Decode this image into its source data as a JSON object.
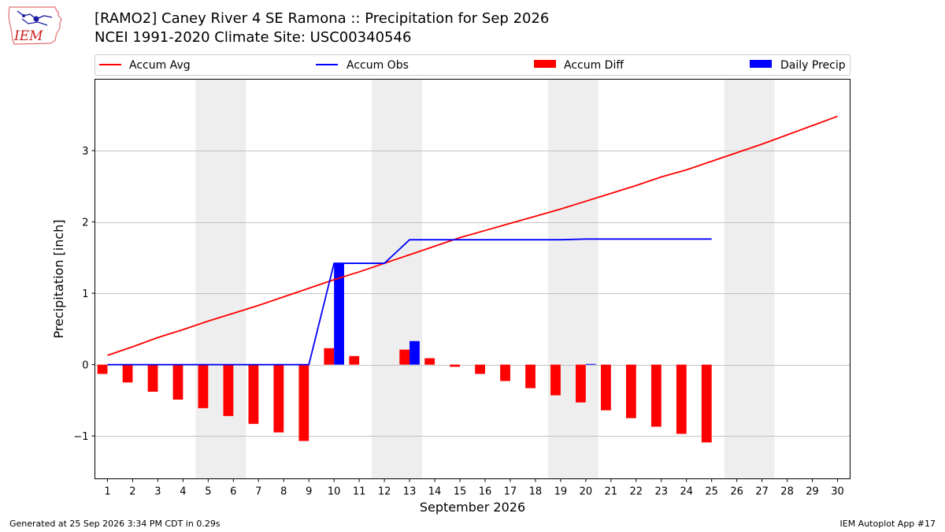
{
  "header": {
    "title_line_1": "[RAMO2] Caney River 4 SE Ramona :: Precipitation for Sep 2026",
    "title_line_2": "NCEI 1991-2020 Climate Site: USC00340546",
    "logo_text": "IEM"
  },
  "footer": {
    "generated": "Generated at 25 Sep 2026 3:34 PM CDT in 0.29s",
    "app": "IEM Autoplot App #17"
  },
  "colors": {
    "accum_avg": "#ff0000",
    "accum_obs": "#0000ff",
    "accum_diff": "#ff0000",
    "daily_precip": "#0000ff",
    "weekend_shade": "#eeeeee"
  },
  "chart_data": {
    "type": "bar",
    "xlabel": "September 2026",
    "ylabel": "Precipitation [inch]",
    "xlim": [
      0.5,
      30.5
    ],
    "ylim": [
      -1.6,
      4.0
    ],
    "yticks": [
      -1,
      0,
      1,
      2,
      3
    ],
    "ytick_labels": [
      "−1",
      "0",
      "1",
      "2",
      "3"
    ],
    "grid": true,
    "legend_position": "top",
    "days": [
      1,
      2,
      3,
      4,
      5,
      6,
      7,
      8,
      9,
      10,
      11,
      12,
      13,
      14,
      15,
      16,
      17,
      18,
      19,
      20,
      21,
      22,
      23,
      24,
      25,
      26,
      27,
      28,
      29,
      30
    ],
    "weekend_spans": [
      [
        4.5,
        6.5
      ],
      [
        11.5,
        13.5
      ],
      [
        18.5,
        20.5
      ],
      [
        25.5,
        27.5
      ]
    ],
    "series": [
      {
        "name": "Accum Avg",
        "kind": "line",
        "x": [
          1,
          2,
          3,
          4,
          5,
          6,
          7,
          8,
          9,
          10,
          11,
          12,
          13,
          14,
          15,
          16,
          17,
          18,
          19,
          20,
          21,
          22,
          23,
          24,
          25,
          26,
          27,
          28,
          29,
          30
        ],
        "values": [
          0.13,
          0.25,
          0.38,
          0.49,
          0.61,
          0.72,
          0.83,
          0.95,
          1.07,
          1.19,
          1.3,
          1.42,
          1.54,
          1.66,
          1.78,
          1.88,
          1.98,
          2.08,
          2.18,
          2.29,
          2.4,
          2.51,
          2.63,
          2.73,
          2.85,
          2.97,
          3.09,
          3.22,
          3.35,
          3.48
        ]
      },
      {
        "name": "Accum Obs",
        "kind": "line",
        "x": [
          1,
          2,
          3,
          4,
          5,
          6,
          7,
          8,
          9,
          10,
          11,
          12,
          13,
          14,
          15,
          16,
          17,
          18,
          19,
          20,
          21,
          22,
          23,
          24,
          25
        ],
        "values": [
          0,
          0,
          0,
          0,
          0,
          0,
          0,
          0,
          0,
          1.42,
          1.42,
          1.42,
          1.75,
          1.75,
          1.75,
          1.75,
          1.75,
          1.75,
          1.75,
          1.76,
          1.76,
          1.76,
          1.76,
          1.76,
          1.76
        ]
      },
      {
        "name": "Accum Diff",
        "kind": "bar",
        "x": [
          1,
          2,
          3,
          4,
          5,
          6,
          7,
          8,
          9,
          10,
          11,
          12,
          13,
          14,
          15,
          16,
          17,
          18,
          19,
          20,
          21,
          22,
          23,
          24,
          25
        ],
        "values": [
          -0.13,
          -0.25,
          -0.38,
          -0.49,
          -0.61,
          -0.72,
          -0.83,
          -0.95,
          -1.07,
          0.23,
          0.12,
          0.0,
          0.21,
          0.09,
          -0.03,
          -0.13,
          -0.23,
          -0.33,
          -0.43,
          -0.53,
          -0.64,
          -0.75,
          -0.87,
          -0.97,
          -1.09
        ]
      },
      {
        "name": "Daily Precip",
        "kind": "bar",
        "x": [
          10,
          13,
          20
        ],
        "values": [
          1.42,
          0.33,
          0.01
        ]
      }
    ]
  }
}
